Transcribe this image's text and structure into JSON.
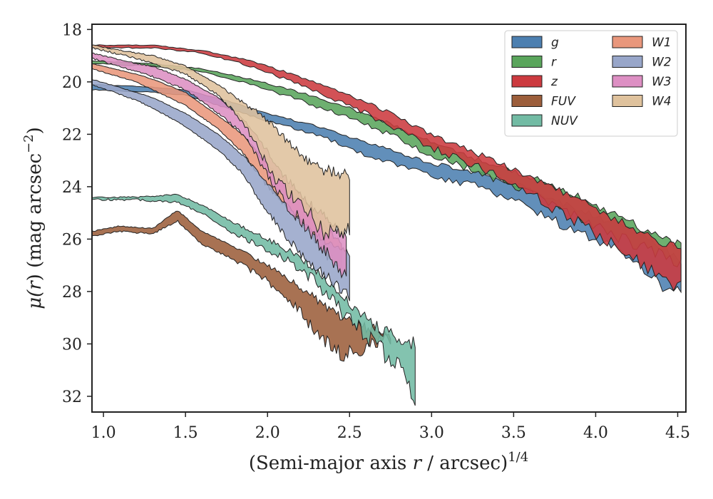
{
  "chart_data": {
    "type": "area",
    "xlabel_prefix": "(Semi-major axis ",
    "xlabel_var": "r",
    "xlabel_suffix": " / arcsec)",
    "xlabel_sup": "1/4",
    "ylabel_mu": "μ(",
    "ylabel_var": "r",
    "ylabel_unit": ") (mag arcsec",
    "ylabel_sup": "−2",
    "ylabel_close": ")",
    "xlim": [
      0.93,
      4.55
    ],
    "ylim": [
      32.6,
      17.8
    ],
    "y_inverted": true,
    "x_ticks": [
      {
        "value": 1.0,
        "label": "1.0"
      },
      {
        "value": 1.5,
        "label": "1.5"
      },
      {
        "value": 2.0,
        "label": "2.0"
      },
      {
        "value": 2.5,
        "label": "2.5"
      },
      {
        "value": 3.0,
        "label": "3.0"
      },
      {
        "value": 3.5,
        "label": "3.5"
      },
      {
        "value": 4.0,
        "label": "4.0"
      },
      {
        "value": 4.5,
        "label": "4.5"
      }
    ],
    "y_ticks": [
      {
        "value": 18,
        "label": "18"
      },
      {
        "value": 20,
        "label": "20"
      },
      {
        "value": 22,
        "label": "22"
      },
      {
        "value": 24,
        "label": "24"
      },
      {
        "value": 26,
        "label": "26"
      },
      {
        "value": 28,
        "label": "28"
      },
      {
        "value": 30,
        "label": "30"
      },
      {
        "value": 32,
        "label": "32"
      }
    ],
    "legend": {
      "placement": "top-right",
      "columns": 2
    },
    "series": [
      {
        "name": "g",
        "color": "#4c7fb0",
        "upper": [
          [
            0.93,
            20.1
          ],
          [
            1.3,
            20.2
          ],
          [
            1.5,
            20.3
          ],
          [
            1.8,
            20.8
          ],
          [
            2.0,
            21.2
          ],
          [
            2.3,
            21.7
          ],
          [
            2.6,
            22.3
          ],
          [
            2.85,
            22.8
          ],
          [
            3.0,
            23.1
          ],
          [
            3.3,
            23.5
          ],
          [
            3.6,
            24.1
          ],
          [
            3.9,
            24.9
          ],
          [
            4.2,
            25.6
          ],
          [
            4.4,
            26.3
          ],
          [
            4.52,
            26.8
          ]
        ],
        "lower": [
          [
            0.93,
            20.3
          ],
          [
            1.3,
            20.4
          ],
          [
            1.5,
            20.5
          ],
          [
            1.8,
            21.1
          ],
          [
            2.0,
            21.5
          ],
          [
            2.3,
            22.0
          ],
          [
            2.6,
            22.8
          ],
          [
            2.85,
            23.3
          ],
          [
            3.0,
            23.6
          ],
          [
            3.3,
            24.0
          ],
          [
            3.6,
            24.8
          ],
          [
            3.9,
            25.8
          ],
          [
            4.2,
            26.6
          ],
          [
            4.4,
            27.8
          ],
          [
            4.52,
            28.1
          ]
        ],
        "noise": 0.18
      },
      {
        "name": "r",
        "color": "#5aa55c",
        "upper": [
          [
            0.93,
            19.2
          ],
          [
            1.3,
            19.3
          ],
          [
            1.6,
            19.5
          ],
          [
            1.9,
            19.9
          ],
          [
            2.2,
            20.4
          ],
          [
            2.5,
            21.0
          ],
          [
            2.75,
            21.6
          ],
          [
            3.0,
            22.3
          ],
          [
            3.3,
            23.0
          ],
          [
            3.6,
            23.6
          ],
          [
            3.9,
            24.4
          ],
          [
            4.2,
            25.3
          ],
          [
            4.4,
            26.0
          ],
          [
            4.52,
            26.2
          ]
        ],
        "lower": [
          [
            0.93,
            19.3
          ],
          [
            1.3,
            19.4
          ],
          [
            1.6,
            19.6
          ],
          [
            1.9,
            20.1
          ],
          [
            2.2,
            20.7
          ],
          [
            2.5,
            21.4
          ],
          [
            2.75,
            22.0
          ],
          [
            3.0,
            22.8
          ],
          [
            3.3,
            23.5
          ],
          [
            3.6,
            24.2
          ],
          [
            3.9,
            25.2
          ],
          [
            4.2,
            26.1
          ],
          [
            4.4,
            26.6
          ],
          [
            4.52,
            27.0
          ]
        ],
        "noise": 0.2
      },
      {
        "name": "z",
        "color": "#cc3a3f",
        "upper": [
          [
            0.93,
            18.6
          ],
          [
            1.3,
            18.6
          ],
          [
            1.6,
            18.8
          ],
          [
            1.9,
            19.2
          ],
          [
            2.2,
            19.8
          ],
          [
            2.5,
            20.5
          ],
          [
            2.75,
            21.2
          ],
          [
            3.0,
            22.0
          ],
          [
            3.3,
            22.8
          ],
          [
            3.6,
            23.6
          ],
          [
            3.9,
            24.5
          ],
          [
            4.2,
            25.5
          ],
          [
            4.4,
            26.1
          ],
          [
            4.52,
            26.2
          ]
        ],
        "lower": [
          [
            0.93,
            18.7
          ],
          [
            1.3,
            18.7
          ],
          [
            1.6,
            18.9
          ],
          [
            1.9,
            19.4
          ],
          [
            2.2,
            20.1
          ],
          [
            2.5,
            20.9
          ],
          [
            2.75,
            21.7
          ],
          [
            3.0,
            22.5
          ],
          [
            3.3,
            23.3
          ],
          [
            3.6,
            24.3
          ],
          [
            3.9,
            25.4
          ],
          [
            4.2,
            26.5
          ],
          [
            4.4,
            27.6
          ],
          [
            4.52,
            27.9
          ]
        ],
        "noise": 0.22
      },
      {
        "name": "FUV",
        "color": "#9c5e3b",
        "upper": [
          [
            0.93,
            25.7
          ],
          [
            1.1,
            25.5
          ],
          [
            1.3,
            25.6
          ],
          [
            1.45,
            24.9
          ],
          [
            1.6,
            25.7
          ],
          [
            1.8,
            26.3
          ],
          [
            2.0,
            27.0
          ],
          [
            2.15,
            27.6
          ],
          [
            2.3,
            28.3
          ],
          [
            2.45,
            29.0
          ],
          [
            2.6,
            29.4
          ],
          [
            2.75,
            29.6
          ]
        ],
        "lower": [
          [
            0.93,
            25.9
          ],
          [
            1.1,
            25.7
          ],
          [
            1.3,
            25.8
          ],
          [
            1.45,
            25.3
          ],
          [
            1.6,
            26.2
          ],
          [
            1.8,
            26.8
          ],
          [
            2.0,
            27.6
          ],
          [
            2.15,
            28.4
          ],
          [
            2.3,
            29.6
          ],
          [
            2.45,
            30.4
          ],
          [
            2.6,
            30.2
          ],
          [
            2.75,
            29.9
          ]
        ],
        "noise": 0.3
      },
      {
        "name": "NUV",
        "color": "#72bba4",
        "upper": [
          [
            0.93,
            24.4
          ],
          [
            1.2,
            24.4
          ],
          [
            1.45,
            24.3
          ],
          [
            1.6,
            24.7
          ],
          [
            1.8,
            25.4
          ],
          [
            2.0,
            26.0
          ],
          [
            2.2,
            26.7
          ],
          [
            2.35,
            27.5
          ],
          [
            2.5,
            28.5
          ],
          [
            2.65,
            29.3
          ],
          [
            2.8,
            29.8
          ],
          [
            2.9,
            30.0
          ]
        ],
        "lower": [
          [
            0.93,
            24.5
          ],
          [
            1.2,
            24.5
          ],
          [
            1.45,
            24.6
          ],
          [
            1.6,
            25.0
          ],
          [
            1.8,
            25.8
          ],
          [
            2.0,
            26.4
          ],
          [
            2.2,
            27.1
          ],
          [
            2.35,
            28.0
          ],
          [
            2.5,
            29.1
          ],
          [
            2.65,
            30.0
          ],
          [
            2.8,
            30.9
          ],
          [
            2.9,
            31.9
          ]
        ],
        "noise": 0.35
      },
      {
        "name": "W1",
        "color": "#e9977c",
        "upper": [
          [
            0.93,
            19.3
          ],
          [
            1.2,
            19.7
          ],
          [
            1.3,
            19.9
          ],
          [
            1.5,
            20.4
          ],
          [
            1.7,
            21.3
          ],
          [
            1.85,
            22.0
          ],
          [
            1.95,
            22.8
          ],
          [
            2.1,
            23.8
          ],
          [
            2.2,
            24.3
          ],
          [
            2.35,
            25.5
          ],
          [
            2.45,
            26.2
          ]
        ],
        "lower": [
          [
            0.93,
            19.5
          ],
          [
            1.2,
            20.0
          ],
          [
            1.3,
            20.3
          ],
          [
            1.5,
            20.9
          ],
          [
            1.7,
            21.8
          ],
          [
            1.85,
            22.7
          ],
          [
            1.95,
            23.6
          ],
          [
            2.1,
            24.7
          ],
          [
            2.2,
            25.3
          ],
          [
            2.35,
            26.6
          ],
          [
            2.45,
            27.0
          ]
        ],
        "noise": 0.15
      },
      {
        "name": "W2",
        "color": "#98a6c9",
        "upper": [
          [
            0.93,
            19.9
          ],
          [
            1.2,
            20.4
          ],
          [
            1.3,
            20.6
          ],
          [
            1.5,
            21.2
          ],
          [
            1.7,
            22.0
          ],
          [
            1.85,
            22.8
          ],
          [
            1.95,
            23.5
          ],
          [
            2.1,
            24.6
          ],
          [
            2.25,
            25.6
          ],
          [
            2.4,
            26.3
          ],
          [
            2.5,
            26.5
          ]
        ],
        "lower": [
          [
            0.93,
            20.1
          ],
          [
            1.2,
            20.7
          ],
          [
            1.3,
            21.0
          ],
          [
            1.5,
            21.7
          ],
          [
            1.7,
            22.6
          ],
          [
            1.85,
            23.5
          ],
          [
            1.95,
            24.5
          ],
          [
            2.1,
            25.8
          ],
          [
            2.25,
            26.9
          ],
          [
            2.4,
            27.6
          ],
          [
            2.5,
            28.2
          ]
        ],
        "noise": 0.2
      },
      {
        "name": "W3",
        "color": "#dd8fc3",
        "upper": [
          [
            0.93,
            18.9
          ],
          [
            1.2,
            19.3
          ],
          [
            1.3,
            19.4
          ],
          [
            1.5,
            19.9
          ],
          [
            1.7,
            20.6
          ],
          [
            1.85,
            21.4
          ],
          [
            1.95,
            22.2
          ],
          [
            2.1,
            23.6
          ],
          [
            2.25,
            24.6
          ],
          [
            2.4,
            25.5
          ],
          [
            2.48,
            26.0
          ]
        ],
        "lower": [
          [
            0.93,
            19.1
          ],
          [
            1.2,
            19.6
          ],
          [
            1.3,
            19.8
          ],
          [
            1.5,
            20.3
          ],
          [
            1.7,
            21.2
          ],
          [
            1.85,
            22.0
          ],
          [
            1.95,
            23.0
          ],
          [
            2.1,
            24.6
          ],
          [
            2.25,
            25.6
          ],
          [
            2.4,
            26.8
          ],
          [
            2.48,
            27.3
          ]
        ],
        "noise": 0.3
      },
      {
        "name": "W4",
        "color": "#dfc29d",
        "upper": [
          [
            0.93,
            18.6
          ],
          [
            1.2,
            18.9
          ],
          [
            1.3,
            19.0
          ],
          [
            1.5,
            19.4
          ],
          [
            1.7,
            20.1
          ],
          [
            1.85,
            20.8
          ],
          [
            1.95,
            21.2
          ],
          [
            2.05,
            21.8
          ],
          [
            2.2,
            22.8
          ],
          [
            2.35,
            23.4
          ],
          [
            2.5,
            23.5
          ]
        ],
        "lower": [
          [
            0.93,
            18.7
          ],
          [
            1.2,
            19.1
          ],
          [
            1.3,
            19.3
          ],
          [
            1.5,
            19.7
          ],
          [
            1.7,
            20.5
          ],
          [
            1.85,
            21.5
          ],
          [
            1.95,
            22.6
          ],
          [
            2.05,
            23.8
          ],
          [
            2.2,
            24.6
          ],
          [
            2.35,
            25.8
          ],
          [
            2.5,
            25.7
          ]
        ],
        "noise": 0.35
      }
    ]
  }
}
